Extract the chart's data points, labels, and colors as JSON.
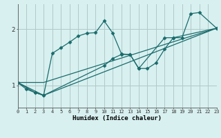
{
  "xlabel": "Humidex (Indice chaleur)",
  "bg_color": "#d8f0f0",
  "grid_color": "#b0c8c8",
  "line_color": "#1a6b6b",
  "xlim": [
    0,
    23
  ],
  "ylim": [
    0.6,
    2.45
  ],
  "xticks": [
    0,
    1,
    2,
    3,
    4,
    5,
    6,
    7,
    8,
    9,
    10,
    11,
    12,
    13,
    14,
    15,
    16,
    17,
    18,
    19,
    20,
    21,
    22,
    23
  ],
  "yticks": [
    1,
    2
  ],
  "lines": [
    {
      "x": [
        0,
        1,
        2,
        3,
        4,
        5,
        6,
        7,
        8,
        9,
        10,
        11,
        12,
        13,
        14,
        15,
        16,
        17,
        18,
        19,
        20,
        21,
        23
      ],
      "y": [
        1.05,
        0.93,
        0.87,
        0.82,
        1.57,
        1.67,
        1.77,
        1.88,
        1.93,
        1.94,
        2.15,
        1.93,
        1.56,
        1.55,
        1.3,
        1.3,
        1.4,
        1.65,
        1.85,
        1.85,
        2.28,
        2.3,
        2.02
      ]
    },
    {
      "x": [
        0,
        2,
        3,
        10,
        11,
        12,
        13,
        14,
        17,
        18,
        23
      ],
      "y": [
        1.05,
        0.87,
        0.82,
        1.35,
        1.48,
        1.55,
        1.55,
        1.3,
        1.85,
        1.85,
        2.02
      ]
    },
    {
      "x": [
        0,
        3,
        23
      ],
      "y": [
        1.05,
        1.05,
        2.02
      ]
    },
    {
      "x": [
        0,
        3,
        23
      ],
      "y": [
        1.05,
        0.82,
        2.02
      ]
    }
  ]
}
